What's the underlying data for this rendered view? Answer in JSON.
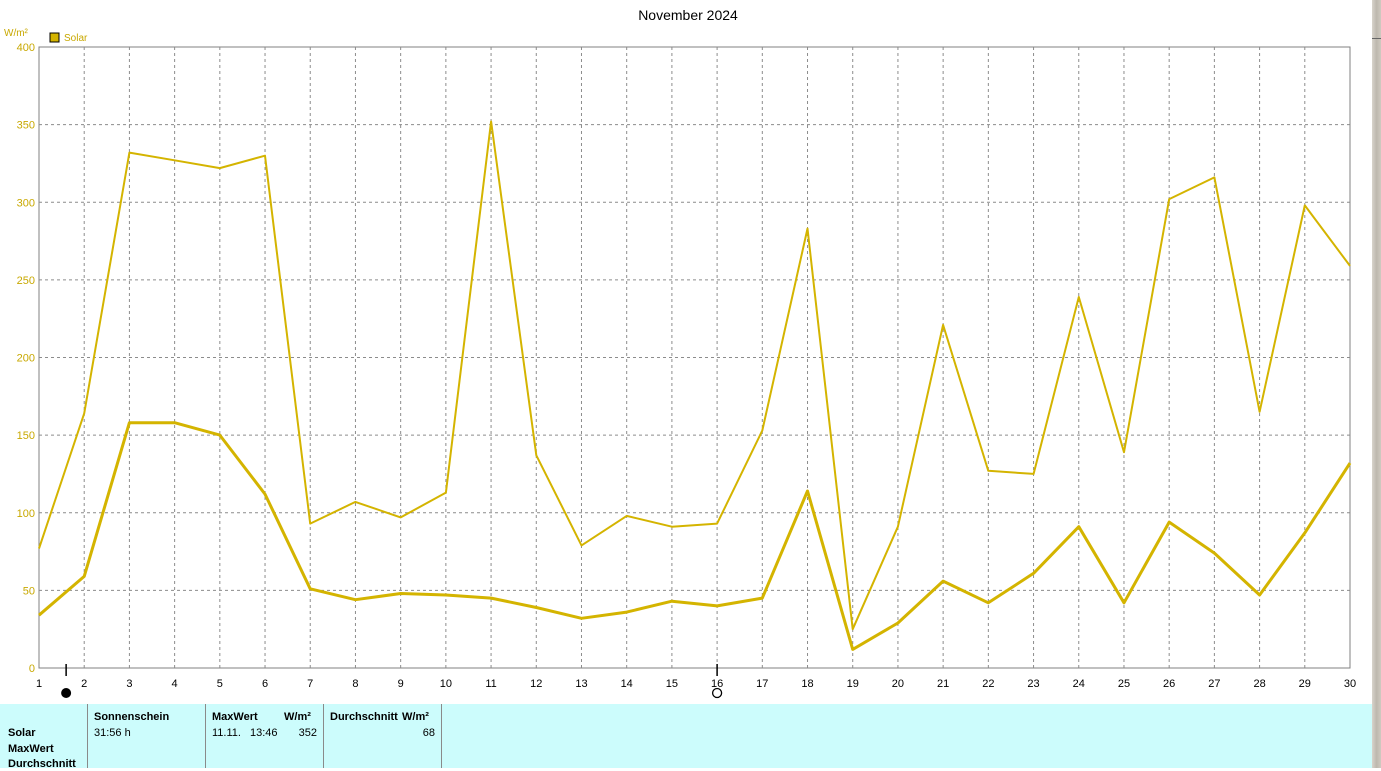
{
  "chart_data": {
    "type": "line",
    "title": "November 2024",
    "ylabel": "W/m²",
    "ylim": [
      0,
      400
    ],
    "yticks": [
      0,
      50,
      100,
      150,
      200,
      250,
      300,
      350,
      400
    ],
    "x": [
      1,
      2,
      3,
      4,
      5,
      6,
      7,
      8,
      9,
      10,
      11,
      12,
      13,
      14,
      15,
      16,
      17,
      18,
      19,
      20,
      21,
      22,
      23,
      24,
      25,
      26,
      27,
      28,
      29,
      30
    ],
    "grid": true,
    "legend": {
      "position": "top-left",
      "entries": [
        "Solar"
      ]
    },
    "series": [
      {
        "name": "Solar",
        "color": "#d4b400",
        "role": "max",
        "values": [
          77,
          164,
          332,
          327,
          322,
          330,
          93,
          107,
          97,
          113,
          352,
          137,
          79,
          98,
          91,
          93,
          153,
          283,
          25,
          91,
          221,
          127,
          125,
          239,
          139,
          302,
          316,
          165,
          298,
          259
        ]
      },
      {
        "name": "Solar",
        "color": "#d4b400",
        "role": "average",
        "values": [
          34,
          59,
          158,
          158,
          150,
          112,
          51,
          44,
          48,
          47,
          45,
          39,
          32,
          36,
          43,
          40,
          45,
          114,
          12,
          29,
          56,
          42,
          61,
          91,
          42,
          94,
          74,
          47,
          87,
          132
        ]
      }
    ],
    "markers": [
      {
        "x": 1.6,
        "icon": "new-moon-icon",
        "color": "#000000"
      },
      {
        "x": 16,
        "icon": "full-moon-icon",
        "color": "#000000"
      }
    ]
  },
  "stats_table": {
    "row_labels": [
      "Solar",
      "MaxWert",
      "Durchschnitt"
    ],
    "columns": [
      {
        "header": "Sonnenschein",
        "unit": "",
        "values": [
          "31:56 h"
        ]
      },
      {
        "header": "MaxWert",
        "unit": "W/m²",
        "date": "11.11.",
        "time": "13:46",
        "value": "352"
      },
      {
        "header": "Durchschnitt",
        "unit": "W/m²",
        "value": "68"
      }
    ]
  }
}
